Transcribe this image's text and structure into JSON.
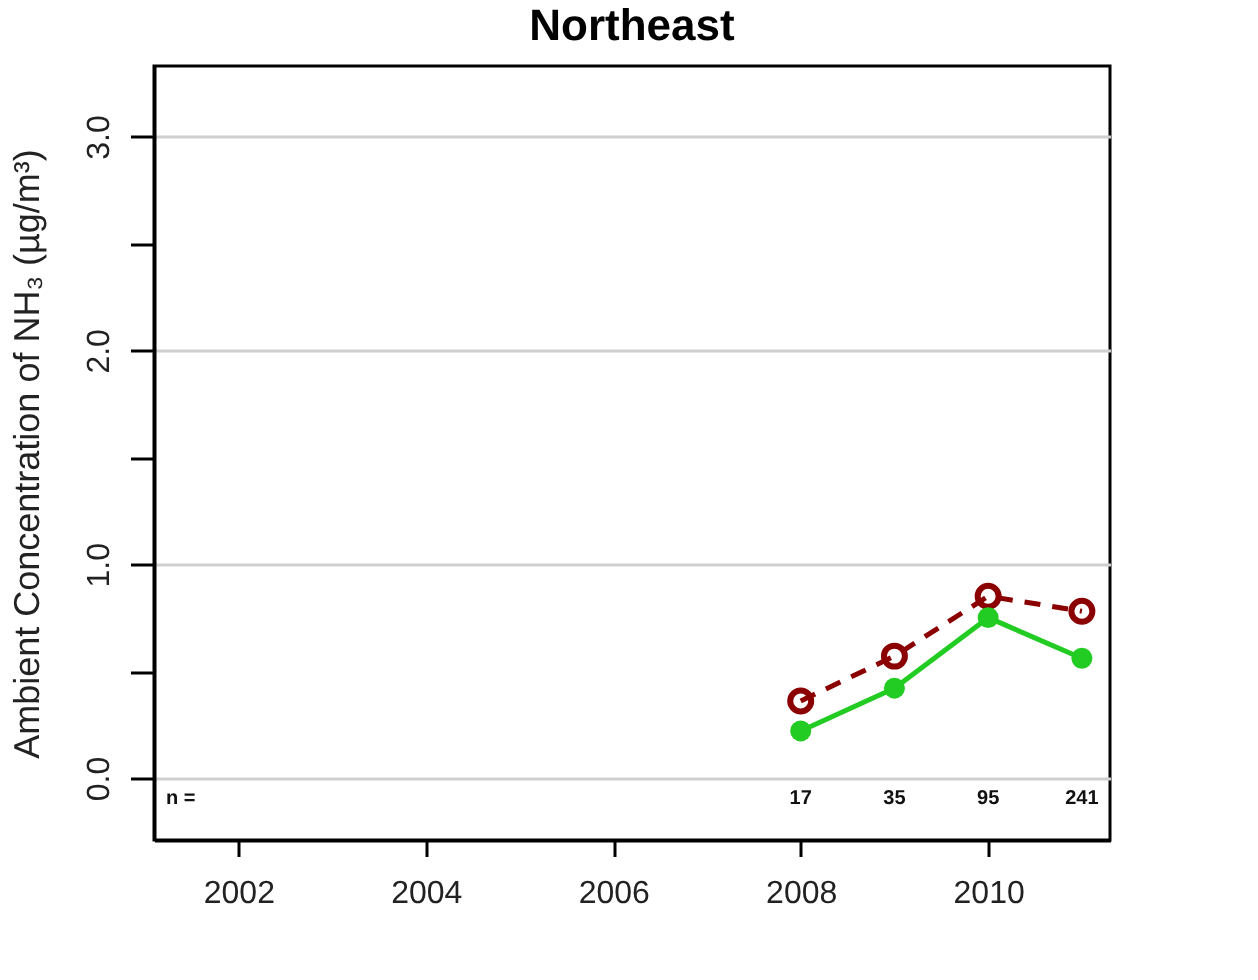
{
  "chart_data": {
    "type": "line",
    "title": "Northeast",
    "ylabel": "Ambient Concentration of NH₃ (µg/m³)",
    "x": [
      2008,
      2009,
      2010,
      2011
    ],
    "series": [
      {
        "color": "#8b0000",
        "values": [
          0.36,
          0.57,
          0.85,
          0.78
        ],
        "line_style": "dashed",
        "marker": "circle"
      },
      {
        "color": "#22cc22",
        "values": [
          0.22,
          0.42,
          0.75,
          0.56
        ],
        "line_style": "solid",
        "marker": "circle"
      }
    ],
    "xlim": [
      2001.1,
      2011.3
    ],
    "xticks": [
      2002,
      2004,
      2006,
      2008,
      2010
    ],
    "ylim": [
      -0.29,
      3.33
    ],
    "yticks": [
      {
        "value": 0,
        "label": "0.0"
      },
      {
        "value": 0.5,
        "label": null
      },
      {
        "value": 1,
        "label": "1.0"
      },
      {
        "value": 1.5,
        "label": null
      },
      {
        "value": 2,
        "label": "2.0"
      },
      {
        "value": 2.5,
        "label": null
      },
      {
        "value": 3,
        "label": "3.0"
      }
    ],
    "grid": "y",
    "annotations": [
      "n =",
      "17",
      "35",
      "95",
      "241"
    ]
  }
}
